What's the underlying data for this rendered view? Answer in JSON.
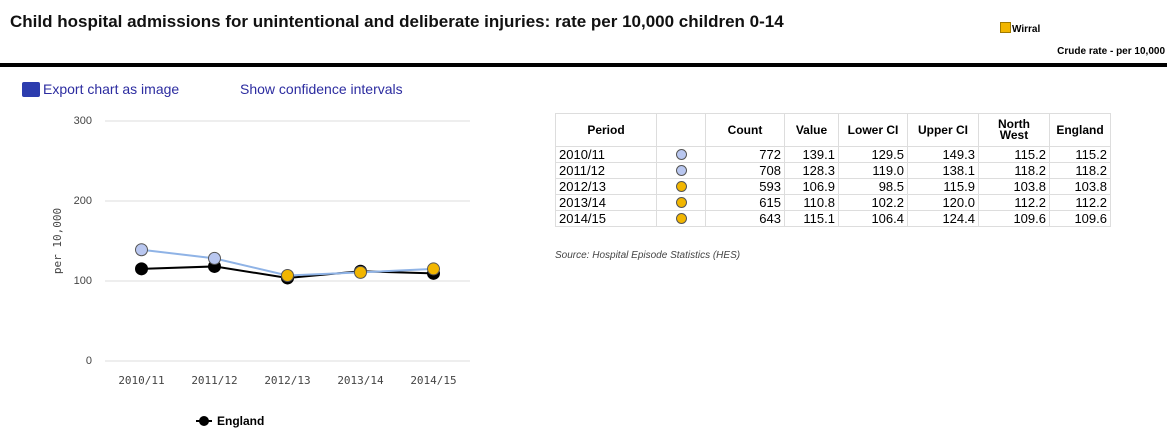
{
  "header": {
    "title": "Child hospital admissions for unintentional and deliberate injuries: rate per 10,000 children 0-14",
    "subtitle": "Crude rate - per 10,000"
  },
  "links": [
    "Export chart as image",
    "Show confidence intervals"
  ],
  "chart_data": {
    "type": "line",
    "categories": [
      "2010/11",
      "2011/12",
      "2012/13",
      "2013/14",
      "2014/15"
    ],
    "ylabel": "per 10,000",
    "ylim": [
      0,
      300
    ],
    "yticks": [
      0,
      100,
      200,
      300
    ],
    "grid": true,
    "series": [
      {
        "name": "Wirral",
        "color": "#8fb3e6",
        "marker_colors": [
          "#b9c7f0",
          "#b9c7f0",
          "#f2b600",
          "#f2b600",
          "#f2b600"
        ],
        "values": [
          139.1,
          128.3,
          106.9,
          110.8,
          115.1
        ]
      },
      {
        "name": "England",
        "color": "#000000",
        "values": [
          115.2,
          118.2,
          103.8,
          112.2,
          109.6
        ]
      }
    ]
  },
  "table": {
    "columns": [
      "Period",
      "Count",
      "Value",
      "Lower CI",
      "Upper CI",
      "North West",
      "England"
    ],
    "rows": [
      [
        "2010/11",
        "772",
        "139.1",
        "129.5",
        "149.3",
        "115.2",
        "115.2"
      ],
      [
        "2011/12",
        "708",
        "128.3",
        "119.0",
        "138.1",
        "118.2",
        "118.2"
      ],
      [
        "2012/13",
        "593",
        "106.9",
        "98.5",
        "115.9",
        "103.8",
        "103.8"
      ],
      [
        "2013/14",
        "615",
        "110.8",
        "102.2",
        "120.0",
        "112.2",
        "112.2"
      ],
      [
        "2014/15",
        "643",
        "115.1",
        "106.4",
        "124.4",
        "109.6",
        "109.6"
      ]
    ],
    "source": "Source: Hospital Episode Statistics (HES)"
  }
}
